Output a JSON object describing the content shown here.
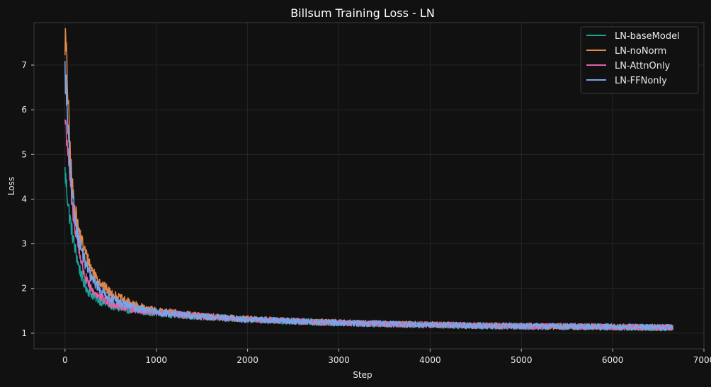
{
  "chart_data": {
    "type": "line",
    "title": "Billsum Training Loss - LN",
    "xlabel": "Step",
    "ylabel": "Loss",
    "xlim": [
      -340,
      7000
    ],
    "ylim": [
      0.65,
      7.95
    ],
    "xticks": [
      0,
      1000,
      2000,
      3000,
      4000,
      5000,
      6000,
      7000
    ],
    "yticks": [
      1,
      2,
      3,
      4,
      5,
      6,
      7
    ],
    "grid": true,
    "legend_position": "top-right",
    "background": "#111111",
    "series": [
      {
        "name": "LN-baseModel",
        "color": "#1aa39a",
        "x": [
          0,
          25,
          50,
          75,
          100,
          150,
          200,
          250,
          300,
          400,
          500,
          600,
          800,
          1000,
          1500,
          2000,
          2500,
          3000,
          3500,
          4000,
          4500,
          5000,
          5500,
          6000,
          6500,
          6660
        ],
        "y": [
          4.6,
          4.1,
          3.6,
          3.3,
          3.0,
          2.5,
          2.15,
          1.95,
          1.85,
          1.7,
          1.62,
          1.55,
          1.5,
          1.45,
          1.36,
          1.3,
          1.26,
          1.22,
          1.2,
          1.18,
          1.16,
          1.15,
          1.14,
          1.13,
          1.12,
          1.12
        ],
        "noise": 0.07
      },
      {
        "name": "LN-noNorm",
        "color": "#e0894a",
        "x": [
          0,
          10,
          25,
          50,
          75,
          100,
          150,
          200,
          250,
          300,
          400,
          500,
          600,
          800,
          1000,
          1500,
          2000,
          2500,
          3000,
          3500,
          4000,
          4500,
          5000,
          5500,
          6000,
          6500,
          6660
        ],
        "y": [
          7.6,
          7.4,
          6.7,
          5.3,
          4.4,
          3.9,
          3.3,
          2.95,
          2.65,
          2.4,
          2.1,
          1.9,
          1.78,
          1.6,
          1.5,
          1.38,
          1.32,
          1.27,
          1.24,
          1.21,
          1.19,
          1.17,
          1.16,
          1.15,
          1.14,
          1.13,
          1.13
        ],
        "noise": 0.07
      },
      {
        "name": "LN-AttnOnly",
        "color": "#e062a8",
        "x": [
          0,
          25,
          50,
          75,
          100,
          150,
          200,
          250,
          300,
          400,
          500,
          600,
          800,
          1000,
          1500,
          2000,
          2500,
          3000,
          3500,
          4000,
          4500,
          5000,
          5500,
          6000,
          6500,
          6660
        ],
        "y": [
          5.8,
          5.3,
          4.6,
          3.9,
          3.5,
          2.9,
          2.4,
          2.1,
          1.95,
          1.78,
          1.67,
          1.6,
          1.52,
          1.46,
          1.37,
          1.31,
          1.27,
          1.23,
          1.21,
          1.19,
          1.17,
          1.16,
          1.15,
          1.14,
          1.13,
          1.13
        ],
        "noise": 0.07
      },
      {
        "name": "LN-FFNonly",
        "color": "#7aa4ea",
        "x": [
          0,
          10,
          25,
          50,
          75,
          100,
          150,
          200,
          250,
          300,
          400,
          500,
          600,
          800,
          1000,
          1500,
          2000,
          2500,
          3000,
          3500,
          4000,
          4500,
          5000,
          5500,
          6000,
          6500,
          6660
        ],
        "y": [
          6.8,
          6.6,
          5.9,
          4.8,
          4.1,
          3.7,
          3.1,
          2.7,
          2.4,
          2.2,
          1.95,
          1.78,
          1.68,
          1.55,
          1.47,
          1.37,
          1.31,
          1.27,
          1.23,
          1.21,
          1.19,
          1.17,
          1.16,
          1.15,
          1.14,
          1.13,
          1.13
        ],
        "noise": 0.07
      }
    ]
  }
}
